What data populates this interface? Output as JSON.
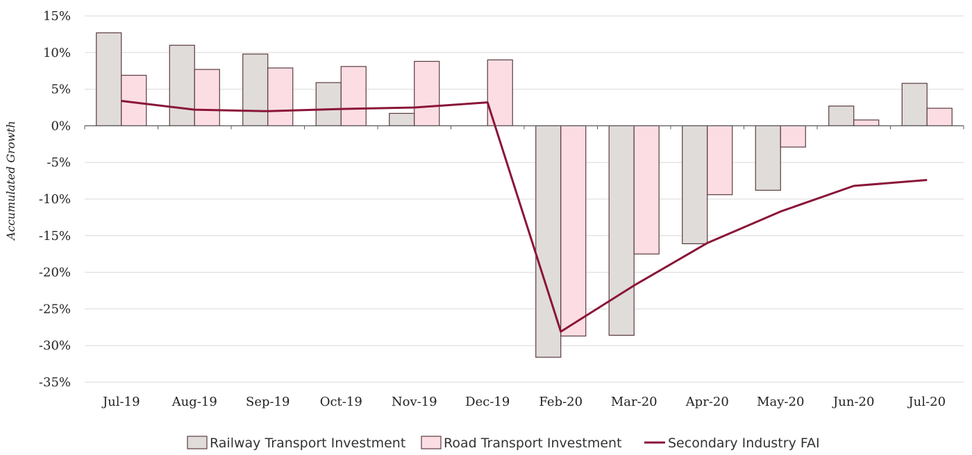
{
  "chart_data": {
    "type": "bar",
    "categories": [
      "Jul-19",
      "Aug-19",
      "Sep-19",
      "Oct-19",
      "Nov-19",
      "Dec-19",
      "Feb-20",
      "Mar-20",
      "Apr-20",
      "May-20",
      "Jun-20",
      "Jul-20"
    ],
    "series": [
      {
        "name": "Railway Transport Investment",
        "kind": "bar",
        "color": "#e0dcda",
        "stroke": "#5a3a3e",
        "values": [
          12.7,
          11.0,
          9.8,
          5.9,
          1.7,
          null,
          -31.6,
          -28.6,
          -16.1,
          -8.8,
          2.7,
          5.8
        ]
      },
      {
        "name": "Road Transport Investment",
        "kind": "bar",
        "color": "#fcdde3",
        "stroke": "#5a3a3e",
        "values": [
          6.9,
          7.7,
          7.9,
          8.1,
          8.8,
          9.0,
          -28.7,
          -17.5,
          -9.4,
          -2.9,
          0.8,
          2.4
        ]
      },
      {
        "name": "Secondary Industry FAI",
        "kind": "line",
        "color": "#8a1538",
        "values": [
          3.4,
          2.2,
          2.0,
          2.3,
          2.5,
          3.2,
          -28.1,
          -21.8,
          -16.0,
          -11.7,
          -8.2,
          -7.4
        ]
      }
    ],
    "ylabel": "Accumulated Growth",
    "ylim": [
      -35,
      15
    ],
    "yticks": [
      15,
      10,
      5,
      0,
      -5,
      -10,
      -15,
      -20,
      -25,
      -30,
      -35
    ],
    "ytick_labels": [
      "15%",
      "10%",
      "5%",
      "0%",
      "-5%",
      "-10%",
      "-15%",
      "-20%",
      "-25%",
      "-30%",
      "-35%"
    ],
    "grid": true,
    "legend_position": "bottom"
  }
}
